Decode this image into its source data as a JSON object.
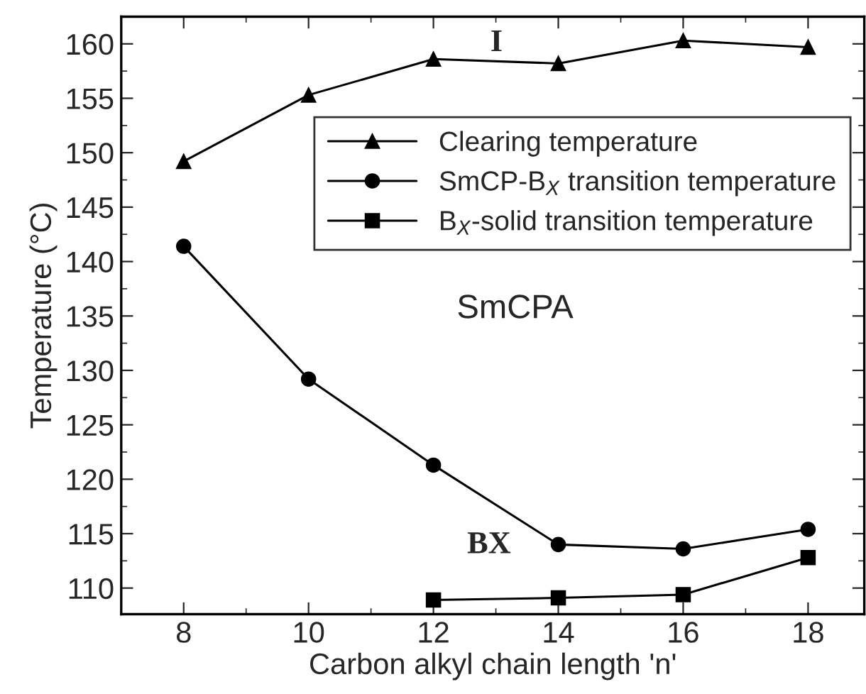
{
  "chart_data": {
    "type": "line",
    "xlabel": "Carbon alkyl chain length 'n'",
    "ylabel": "Temperature (°C)",
    "x": [
      8,
      10,
      12,
      14,
      16,
      18
    ],
    "series": [
      {
        "name": "Clearing temperature",
        "color": "#000000",
        "marker": "triangle",
        "values": [
          149.2,
          155.3,
          158.6,
          158.2,
          160.3,
          159.7
        ]
      },
      {
        "name": "SmCP-B$_{X}$ transition temperature",
        "color": "#000000",
        "marker": "circle",
        "values": [
          141.4,
          129.2,
          121.3,
          114.0,
          113.6,
          115.4
        ]
      },
      {
        "name": "B$_{X}$-solid transition temperature",
        "color": "#000000",
        "marker": "square",
        "values": [
          null,
          null,
          108.9,
          109.1,
          109.4,
          112.8
        ]
      }
    ],
    "xlim": [
      7,
      18.9
    ],
    "xticks": [
      8,
      10,
      12,
      14,
      16,
      18
    ],
    "ylim": [
      107.6,
      162.5
    ],
    "yticks": [
      110,
      115,
      120,
      125,
      130,
      135,
      140,
      145,
      150,
      155,
      160
    ],
    "annotations": [
      "I",
      "SmCPA",
      "BX"
    ],
    "legend": "top right",
    "grid": false,
    "line_style": "solid"
  }
}
